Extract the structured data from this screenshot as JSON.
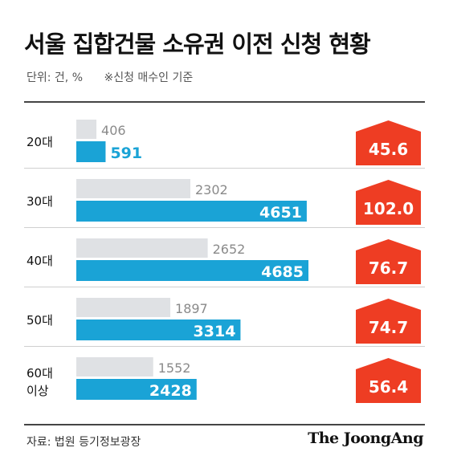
{
  "header": {
    "title": "서울 집합건물 소유권 이전 신청 현황",
    "unit": "단위: 건, %",
    "note": "※신청 매수인 기준"
  },
  "footer": {
    "source": "자료: 법원 등기정보광장",
    "brand": "The JoongAng"
  },
  "colors": {
    "prev_bar": "#dfe1e4",
    "curr_bar": "#1aa3d6",
    "badge": "#ee3d23",
    "prev_text": "#8a8a8a",
    "divider": "#cfcfcf"
  },
  "chart_data": {
    "type": "bar",
    "orientation": "horizontal",
    "categories": [
      "20대",
      "30대",
      "40대",
      "50대",
      "60대\n이상"
    ],
    "series": [
      {
        "values": [
          406,
          2302,
          2652,
          1897,
          1552
        ]
      },
      {
        "values": [
          591,
          4651,
          4685,
          3314,
          2428
        ]
      }
    ],
    "change_pct": [
      "45.6",
      "102.0",
      "76.7",
      "74.7",
      "56.4"
    ],
    "xlim": [
      0,
      4685
    ],
    "grid": false,
    "legend": "none"
  }
}
